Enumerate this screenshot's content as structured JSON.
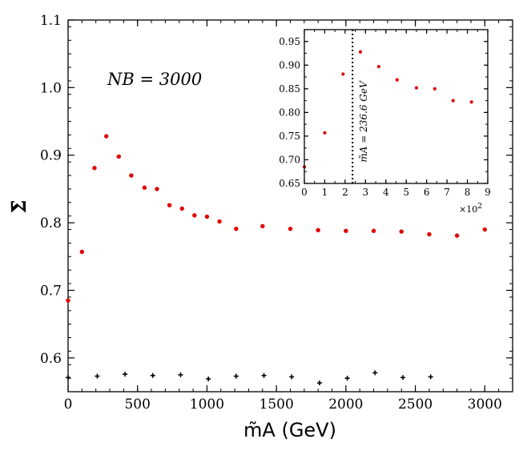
{
  "chart_data": [
    {
      "type": "scatter",
      "xlabel": "m̃A (GeV)",
      "ylabel": "Σ̄",
      "xlim": [
        0,
        3200
      ],
      "ylim": [
        0.55,
        1.1
      ],
      "xticks": [
        "0",
        "500",
        "1000",
        "1500",
        "2000",
        "2500",
        "3000"
      ],
      "yticks": [
        "0.6",
        "0.7",
        "0.8",
        "0.9",
        "1.0",
        "1.1"
      ],
      "annotation": "NB = 3000",
      "series": [
        {
          "marker": "dot",
          "color": "#e00000",
          "x": [
            0,
            100,
            190,
            275,
            365,
            455,
            550,
            640,
            730,
            820,
            910,
            1000,
            1090,
            1210,
            1400,
            1600,
            1800,
            2000,
            2200,
            2400,
            2600,
            2800,
            3000
          ],
          "y": [
            0.685,
            0.757,
            0.881,
            0.928,
            0.898,
            0.87,
            0.852,
            0.85,
            0.826,
            0.821,
            0.811,
            0.809,
            0.802,
            0.791,
            0.795,
            0.791,
            0.789,
            0.788,
            0.788,
            0.787,
            0.783,
            0.781,
            0.79
          ]
        },
        {
          "marker": "plus",
          "color": "#000000",
          "x": [
            0,
            210,
            410,
            610,
            810,
            1010,
            1210,
            1410,
            1610,
            1810,
            2010,
            2210,
            2410,
            2610
          ],
          "y": [
            0.571,
            0.573,
            0.576,
            0.574,
            0.575,
            0.569,
            0.573,
            0.574,
            0.572,
            0.563,
            0.57,
            0.578,
            0.571,
            0.572
          ]
        }
      ]
    },
    {
      "type": "scatter",
      "xlim": [
        0,
        900
      ],
      "ylim": [
        0.65,
        0.975
      ],
      "xticks": [
        "0",
        "1",
        "2",
        "3",
        "4",
        "5",
        "6",
        "7",
        "8",
        "9"
      ],
      "yticks": [
        "0.65",
        "0.70",
        "0.75",
        "0.80",
        "0.85",
        "0.90",
        "0.95"
      ],
      "x_offset_label": "×10",
      "x_offset_exp": "2",
      "vline_x": 236.6,
      "vline_label": "m̃A = 236.6 GeV",
      "series": [
        {
          "marker": "dot",
          "color": "#e00000",
          "x": [
            0,
            100,
            190,
            275,
            365,
            455,
            550,
            640,
            730,
            820
          ],
          "y": [
            0.685,
            0.757,
            0.881,
            0.928,
            0.897,
            0.869,
            0.852,
            0.85,
            0.825,
            0.822
          ]
        }
      ]
    }
  ]
}
